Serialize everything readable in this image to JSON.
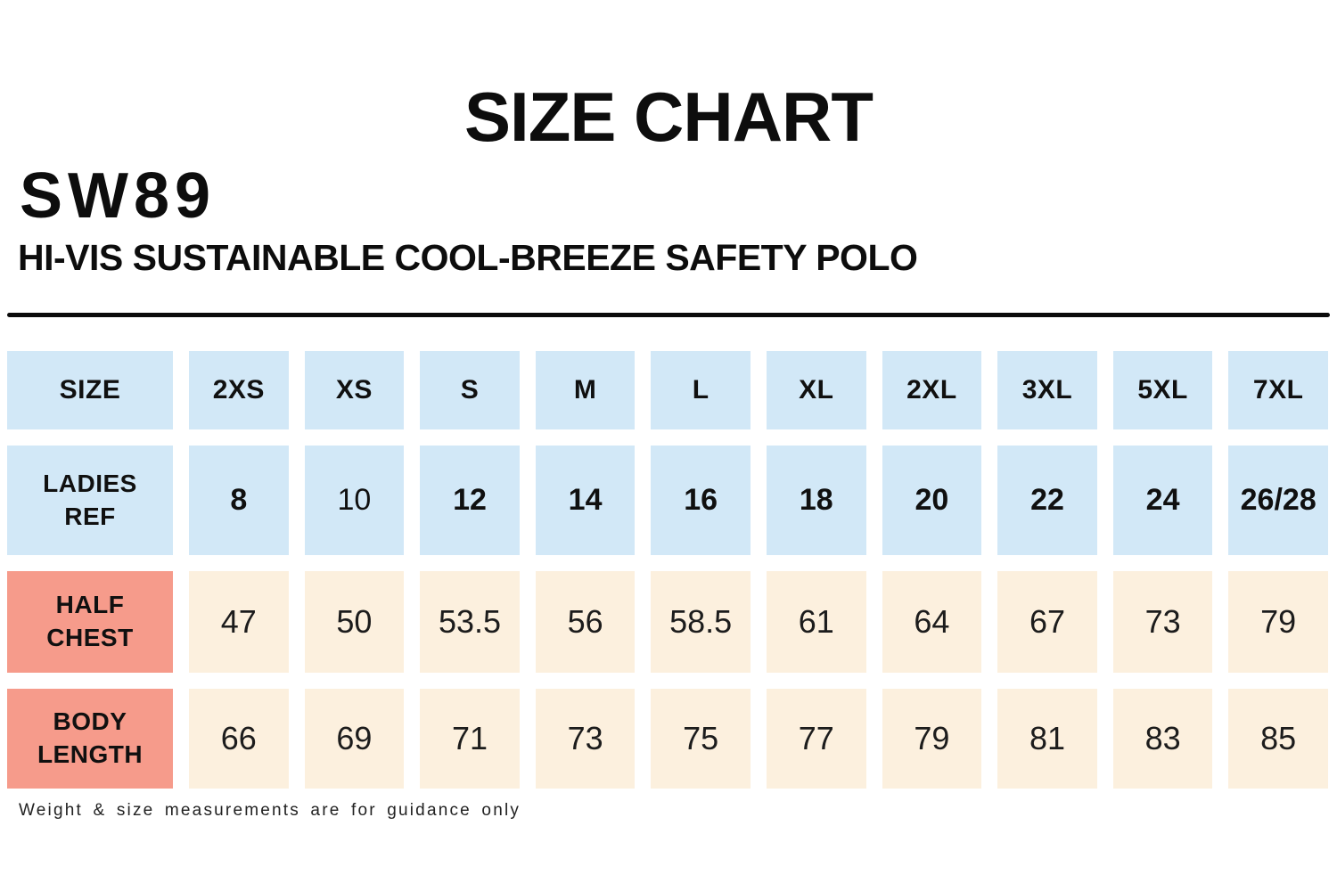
{
  "header": {
    "title": "SIZE CHART",
    "product_code": "SW89",
    "product_name": "HI-VIS SUSTAINABLE COOL-BREEZE SAFETY POLO"
  },
  "footnote": "Weight & size measurements are for guidance only",
  "colors": {
    "header_blue": "#d2e8f7",
    "label_salmon": "#f69b8b",
    "value_cream": "#fcf0de",
    "text": "#0d0d0d"
  },
  "chart_data": {
    "type": "table",
    "title": "SIZE CHART",
    "columns": [
      "SIZE",
      "2XS",
      "XS",
      "S",
      "M",
      "L",
      "XL",
      "2XL",
      "3XL",
      "5XL",
      "7XL"
    ],
    "rows": [
      {
        "label": "LADIES REF",
        "values": [
          "8",
          "10",
          "12",
          "14",
          "16",
          "18",
          "20",
          "22",
          "24",
          "26/28"
        ]
      },
      {
        "label": "HALF CHEST",
        "values": [
          "47",
          "50",
          "53.5",
          "56",
          "58.5",
          "61",
          "64",
          "67",
          "73",
          "79"
        ]
      },
      {
        "label": "BODY LENGTH",
        "values": [
          "66",
          "69",
          "71",
          "73",
          "75",
          "77",
          "79",
          "81",
          "83",
          "85"
        ]
      }
    ],
    "notes": "Weight & size measurements are for guidance only"
  },
  "table": {
    "size_label": "SIZE",
    "sizes": [
      "2XS",
      "XS",
      "S",
      "M",
      "L",
      "XL",
      "2XL",
      "3XL",
      "5XL",
      "7XL"
    ],
    "ladies_label": "LADIES\nREF",
    "ladies": [
      "8",
      "10",
      "12",
      "14",
      "16",
      "18",
      "20",
      "22",
      "24",
      "26/28"
    ],
    "half_chest_label": "HALF\nCHEST",
    "half_chest": [
      "47",
      "50",
      "53.5",
      "56",
      "58.5",
      "61",
      "64",
      "67",
      "73",
      "79"
    ],
    "body_length_label": "BODY\nLENGTH",
    "body_length": [
      "66",
      "69",
      "71",
      "73",
      "75",
      "77",
      "79",
      "81",
      "83",
      "85"
    ]
  }
}
